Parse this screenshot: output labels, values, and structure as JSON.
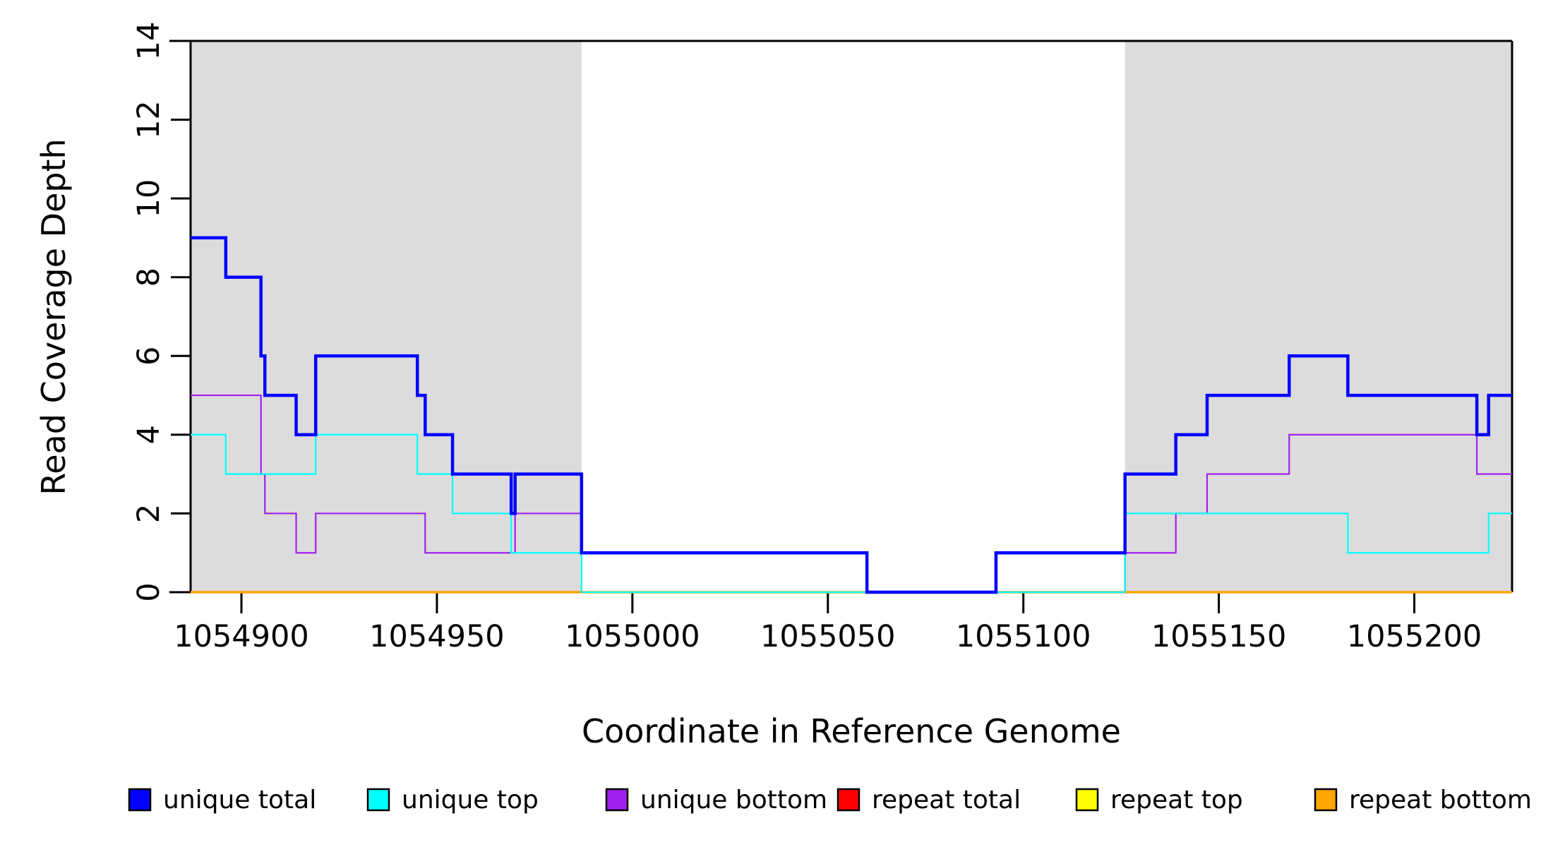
{
  "figure": {
    "background_color": "#FFFFFF",
    "axis_color": "#000000",
    "shade_color": "#DCDCDC"
  },
  "chart_data": {
    "type": "line",
    "step": "after",
    "title": "",
    "xlabel": "Coordinate in Reference Genome",
    "ylabel": "Read Coverage Depth",
    "xlim": [
      1054887,
      1055225
    ],
    "ylim": [
      0,
      14
    ],
    "x_ticks": [
      1054900,
      1054950,
      1055000,
      1055050,
      1055100,
      1055150,
      1055200
    ],
    "y_ticks": [
      0,
      2,
      4,
      6,
      8,
      10,
      12,
      14
    ],
    "grid": false,
    "legend_position": "bottom",
    "shaded_regions": [
      {
        "start": 1054887,
        "end": 1054987,
        "color": "#DCDCDC"
      },
      {
        "start": 1055126,
        "end": 1055225,
        "color": "#DCDCDC"
      }
    ],
    "series": [
      {
        "name": "unique total",
        "color": "#0000FF",
        "line_width": 4.5,
        "points": [
          [
            1054887,
            9
          ],
          [
            1054896,
            8
          ],
          [
            1054905,
            6
          ],
          [
            1054906,
            5
          ],
          [
            1054914,
            4
          ],
          [
            1054919,
            6
          ],
          [
            1054945,
            5
          ],
          [
            1054947,
            4
          ],
          [
            1054954,
            3
          ],
          [
            1054969,
            2
          ],
          [
            1054970,
            3
          ],
          [
            1054987,
            1
          ],
          [
            1055060,
            0
          ],
          [
            1055093,
            1
          ],
          [
            1055126,
            3
          ],
          [
            1055139,
            4
          ],
          [
            1055147,
            5
          ],
          [
            1055168,
            6
          ],
          [
            1055183,
            5
          ],
          [
            1055216,
            4
          ],
          [
            1055219,
            5
          ],
          [
            1055225,
            5
          ]
        ]
      },
      {
        "name": "unique top",
        "color": "#00FFFF",
        "line_width": 2.2,
        "points": [
          [
            1054887,
            4
          ],
          [
            1054896,
            3
          ],
          [
            1054919,
            4
          ],
          [
            1054945,
            3
          ],
          [
            1054954,
            2
          ],
          [
            1054969,
            1
          ],
          [
            1054987,
            0
          ],
          [
            1055126,
            2
          ],
          [
            1055183,
            1
          ],
          [
            1055219,
            2
          ],
          [
            1055225,
            2
          ]
        ]
      },
      {
        "name": "unique bottom",
        "color": "#A020F0",
        "line_width": 2.2,
        "points": [
          [
            1054887,
            5
          ],
          [
            1054905,
            3
          ],
          [
            1054906,
            2
          ],
          [
            1054914,
            1
          ],
          [
            1054919,
            2
          ],
          [
            1054947,
            1
          ],
          [
            1054970,
            2
          ],
          [
            1054987,
            1
          ],
          [
            1055060,
            0
          ],
          [
            1055126,
            1
          ],
          [
            1055139,
            2
          ],
          [
            1055147,
            3
          ],
          [
            1055168,
            4
          ],
          [
            1055216,
            3
          ],
          [
            1055225,
            3
          ]
        ]
      },
      {
        "name": "repeat total",
        "color": "#FF0000",
        "line_width": 3,
        "points": [
          [
            1054887,
            0
          ],
          [
            1055225,
            0
          ]
        ]
      },
      {
        "name": "repeat top",
        "color": "#FFFF00",
        "line_width": 3,
        "points": [
          [
            1054887,
            0
          ],
          [
            1055225,
            0
          ]
        ]
      },
      {
        "name": "repeat bottom",
        "color": "#FFA500",
        "line_width": 3.5,
        "points": [
          [
            1054887,
            0
          ],
          [
            1055225,
            0
          ]
        ]
      }
    ],
    "z_order": [
      4,
      3,
      5,
      2,
      1,
      0
    ]
  },
  "legend": {
    "items": [
      {
        "label": "unique total",
        "color": "#0000FF"
      },
      {
        "label": "unique top",
        "color": "#00FFFF"
      },
      {
        "label": "unique bottom",
        "color": "#A020F0"
      },
      {
        "label": "repeat total",
        "color": "#FF0000"
      },
      {
        "label": "repeat top",
        "color": "#FFFF00"
      },
      {
        "label": "repeat bottom",
        "color": "#FFA500"
      }
    ]
  }
}
